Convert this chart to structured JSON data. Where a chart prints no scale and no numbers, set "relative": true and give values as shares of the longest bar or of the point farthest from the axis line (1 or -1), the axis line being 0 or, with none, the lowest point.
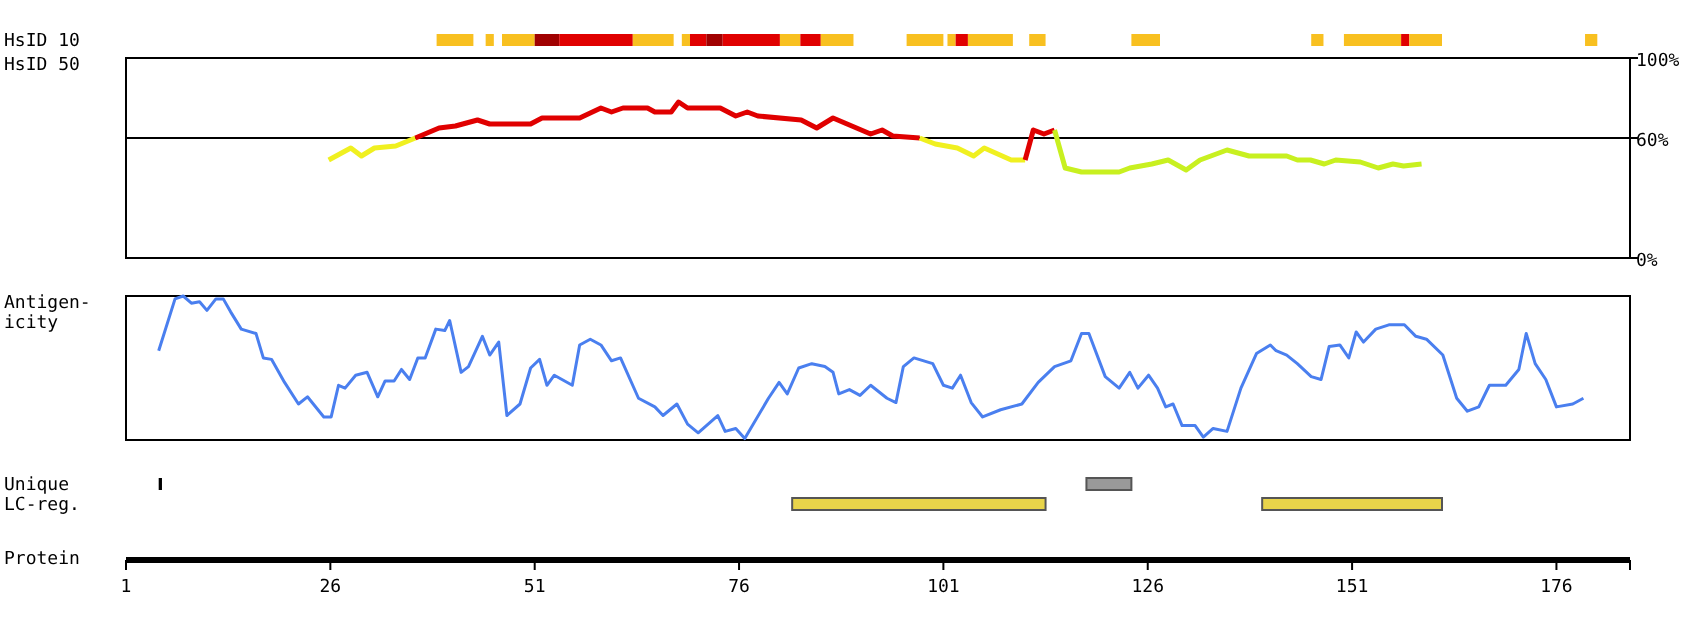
{
  "chart_data": [
    {
      "type": "line",
      "ylabel": "HsID 50",
      "xlim": [
        1,
        185
      ],
      "ylim": [
        0,
        100
      ],
      "yticks": [
        {
          "value": 0,
          "label": "0%"
        },
        {
          "value": 60,
          "label": "60%"
        },
        {
          "value": 100,
          "label": "100%"
        }
      ],
      "tick_labels": "y",
      "ref_lines": [
        {
          "axis": "y",
          "value": 60,
          "label": null,
          "color": "#000000"
        }
      ],
      "series": [
        {
          "color": "#f0f020",
          "x": [
            25.8,
            28.5,
            29.8,
            31.4,
            34,
            36.4
          ],
          "values": [
            49,
            55,
            51,
            55,
            56,
            60
          ]
        },
        {
          "color": "#e00000",
          "x": [
            36.4,
            39.3,
            41.3,
            44,
            45.5,
            50.5,
            51.9,
            53.2,
            56.5,
            59.1,
            60.4,
            61.8,
            64.8,
            65.7,
            67.7,
            68.6,
            69.7,
            73.7,
            75.6,
            77,
            78.3,
            83.6,
            85.5,
            87.5,
            92.1,
            93.5,
            94.8,
            98.1
          ],
          "values": [
            60,
            65,
            66,
            69,
            67,
            67,
            70,
            70,
            70,
            75,
            73,
            75,
            75,
            73,
            73,
            78,
            75,
            75,
            71,
            73,
            71,
            69,
            65,
            70,
            62,
            64,
            61,
            60
          ]
        },
        {
          "color": "#f0f020",
          "x": [
            98.1,
            100,
            102.7,
            104.7,
            106,
            109.3,
            111
          ],
          "values": [
            60,
            57,
            55,
            51,
            55,
            49,
            49
          ]
        },
        {
          "color": "#e00000",
          "x": [
            111,
            112,
            113.3,
            114.6
          ],
          "values": [
            49,
            64,
            62,
            64
          ]
        },
        {
          "color": "#c8f020",
          "x": [
            114.6,
            115.9,
            117.9,
            122.5,
            123.8,
            126.5,
            128.5,
            130.7,
            132.4,
            135.7,
            138.4,
            143,
            144.3,
            145.9,
            147.6,
            149,
            152,
            154.2,
            156,
            157.3,
            159.5
          ],
          "values": [
            64,
            45,
            43,
            43,
            45,
            47,
            49,
            44,
            49,
            54,
            51,
            51,
            49,
            49,
            47,
            49,
            48,
            45,
            47,
            46,
            47
          ]
        }
      ]
    },
    {
      "type": "line",
      "ylabel": "Antigen-\nicity",
      "relative": true,
      "xlim": [
        1,
        185
      ],
      "tick_labels": false,
      "series": [
        {
          "color": "#4a7fef",
          "x": [
            5,
            7,
            8,
            9,
            10,
            10.9,
            12,
            12.9,
            13.8,
            15.1,
            16.9,
            17.8,
            18.8,
            20.4,
            22.1,
            23.2,
            25.2,
            26.1,
            27,
            27.8,
            29.1,
            30.5,
            31.8,
            32.7,
            33.8,
            34.7,
            35.7,
            36.7,
            37.6,
            38.9,
            40,
            40.6,
            42,
            42.9,
            44.6,
            45.5,
            46.6,
            47.6,
            49.2,
            50.5,
            51.6,
            52.5,
            53.4,
            55.6,
            56.5,
            57.8,
            59.1,
            60.4,
            61.5,
            63.7,
            65.7,
            66.7,
            68.4,
            69.7,
            71,
            73.4,
            74.3,
            75.6,
            76.7,
            79.6,
            80.9,
            81.9,
            83.3,
            84.9,
            86.5,
            87.5,
            88.2,
            89.5,
            90.8,
            92.1,
            94.1,
            95.2,
            96.1,
            97.4,
            99.7,
            101,
            102.1,
            103.1,
            104.4,
            105.8,
            108,
            110.6,
            112.6,
            114.6,
            116.6,
            117.9,
            118.8,
            120.8,
            122.5,
            123.8,
            124.8,
            126.1,
            127.2,
            128.2,
            129.1,
            130.2,
            131.8,
            132.8,
            134,
            135.7,
            137.4,
            139.3,
            141,
            141.7,
            143,
            144.3,
            146,
            147.2,
            148.2,
            149.5,
            150.6,
            151.5,
            152.4,
            153.9,
            155.5,
            157.4,
            158.8,
            160.1,
            162.1,
            163.8,
            165.1,
            166.5,
            167.8,
            169.8,
            171.4,
            172.3,
            173.4,
            174.7,
            176,
            178,
            179.3
          ],
          "values": [
            0.62,
            0.98,
            1,
            0.95,
            0.96,
            0.9,
            0.98,
            0.98,
            0.89,
            0.77,
            0.74,
            0.57,
            0.56,
            0.4,
            0.25,
            0.3,
            0.16,
            0.16,
            0.38,
            0.36,
            0.45,
            0.47,
            0.3,
            0.41,
            0.41,
            0.49,
            0.42,
            0.57,
            0.57,
            0.77,
            0.76,
            0.83,
            0.47,
            0.51,
            0.72,
            0.59,
            0.68,
            0.17,
            0.25,
            0.5,
            0.56,
            0.38,
            0.45,
            0.38,
            0.66,
            0.7,
            0.66,
            0.55,
            0.57,
            0.29,
            0.23,
            0.17,
            0.25,
            0.11,
            0.05,
            0.17,
            0.06,
            0.08,
            0.01,
            0.29,
            0.4,
            0.32,
            0.5,
            0.53,
            0.51,
            0.47,
            0.32,
            0.35,
            0.31,
            0.38,
            0.29,
            0.26,
            0.51,
            0.57,
            0.53,
            0.38,
            0.36,
            0.45,
            0.26,
            0.16,
            0.21,
            0.25,
            0.4,
            0.51,
            0.55,
            0.74,
            0.74,
            0.44,
            0.36,
            0.47,
            0.36,
            0.45,
            0.36,
            0.23,
            0.25,
            0.1,
            0.1,
            0.02,
            0.08,
            0.06,
            0.36,
            0.6,
            0.66,
            0.62,
            0.59,
            0.53,
            0.44,
            0.42,
            0.65,
            0.66,
            0.57,
            0.75,
            0.68,
            0.77,
            0.8,
            0.8,
            0.72,
            0.7,
            0.59,
            0.29,
            0.2,
            0.23,
            0.38,
            0.38,
            0.49,
            0.74,
            0.53,
            0.42,
            0.23,
            0.25,
            0.29
          ]
        }
      ]
    },
    {
      "type": "bar",
      "orientation": "horizontal",
      "categories": [
        "HsID 10",
        "Unique",
        "LC-reg."
      ],
      "xlabel": "Protein",
      "xlim": [
        1,
        185
      ],
      "xticks": [
        1,
        26,
        51,
        76,
        101,
        126,
        151,
        176
      ],
      "series": [
        {
          "color": "#f8c020",
          "base": [
            39,
            null,
            null
          ],
          "values": [
            4.5,
            null,
            null
          ]
        },
        {
          "color": "#f8c020",
          "base": [
            45,
            null,
            null
          ],
          "values": [
            1,
            null,
            null
          ]
        },
        {
          "color": "#f8c020",
          "base": [
            47,
            null,
            null
          ],
          "values": [
            4,
            null,
            null
          ]
        },
        {
          "color": "#a00000",
          "base": [
            51,
            null,
            null
          ],
          "values": [
            3,
            null,
            null
          ]
        },
        {
          "color": "#e00000",
          "base": [
            54,
            null,
            null
          ],
          "values": [
            9,
            null,
            null
          ]
        },
        {
          "color": "#f8c020",
          "base": [
            63,
            null,
            null
          ],
          "values": [
            5,
            null,
            null
          ]
        },
        {
          "color": "#f8c020",
          "base": [
            69,
            null,
            null
          ],
          "values": [
            1,
            null,
            null
          ]
        },
        {
          "color": "#e00000",
          "base": [
            70,
            null,
            null
          ],
          "values": [
            2,
            null,
            null
          ]
        },
        {
          "color": "#a00000",
          "base": [
            72,
            null,
            null
          ],
          "values": [
            2,
            null,
            null
          ]
        },
        {
          "color": "#e00000",
          "base": [
            74,
            null,
            null
          ],
          "values": [
            7,
            null,
            null
          ]
        },
        {
          "color": "#f8c020",
          "base": [
            81,
            null,
            null
          ],
          "values": [
            2.5,
            null,
            null
          ]
        },
        {
          "color": "#e00000",
          "base": [
            83.5,
            null,
            null
          ],
          "values": [
            2.5,
            null,
            null
          ]
        },
        {
          "color": "#f8c020",
          "base": [
            86,
            null,
            null
          ],
          "values": [
            4,
            null,
            null
          ]
        },
        {
          "color": "#f8c020",
          "base": [
            96.5,
            null,
            null
          ],
          "values": [
            4.5,
            null,
            null
          ]
        },
        {
          "color": "#f8c020",
          "base": [
            101.5,
            null,
            null
          ],
          "values": [
            1,
            null,
            null
          ]
        },
        {
          "color": "#e00000",
          "base": [
            102.5,
            null,
            null
          ],
          "values": [
            1.5,
            null,
            null
          ]
        },
        {
          "color": "#f8c020",
          "base": [
            104,
            null,
            null
          ],
          "values": [
            5.5,
            null,
            null
          ]
        },
        {
          "color": "#f8c020",
          "base": [
            111.5,
            null,
            null
          ],
          "values": [
            2,
            null,
            null
          ]
        },
        {
          "color": "#f8c020",
          "base": [
            124,
            null,
            null
          ],
          "values": [
            3.5,
            null,
            null
          ]
        },
        {
          "color": "#f8c020",
          "base": [
            146,
            null,
            null
          ],
          "values": [
            1.5,
            null,
            null
          ]
        },
        {
          "color": "#f8c020",
          "base": [
            150,
            null,
            null
          ],
          "values": [
            7,
            null,
            null
          ]
        },
        {
          "color": "#e00000",
          "base": [
            157,
            null,
            null
          ],
          "values": [
            1,
            null,
            null
          ]
        },
        {
          "color": "#f8c020",
          "base": [
            158,
            null,
            null
          ],
          "values": [
            4,
            null,
            null
          ]
        },
        {
          "color": "#f8c020",
          "base": [
            179.5,
            null,
            null
          ],
          "values": [
            1.5,
            null,
            null
          ]
        },
        {
          "color": "#000000",
          "base": [
            null,
            5,
            null
          ],
          "values": [
            null,
            0.4,
            null
          ]
        },
        {
          "color": "#999999",
          "base": [
            null,
            118.5,
            null
          ],
          "values": [
            null,
            5.5,
            null
          ]
        },
        {
          "color": "#e8d44a",
          "base": [
            null,
            null,
            82.5
          ],
          "values": [
            null,
            null,
            31
          ]
        },
        {
          "color": "#e8d44a",
          "base": [
            null,
            null,
            140
          ],
          "values": [
            null,
            null,
            22
          ]
        }
      ]
    }
  ]
}
